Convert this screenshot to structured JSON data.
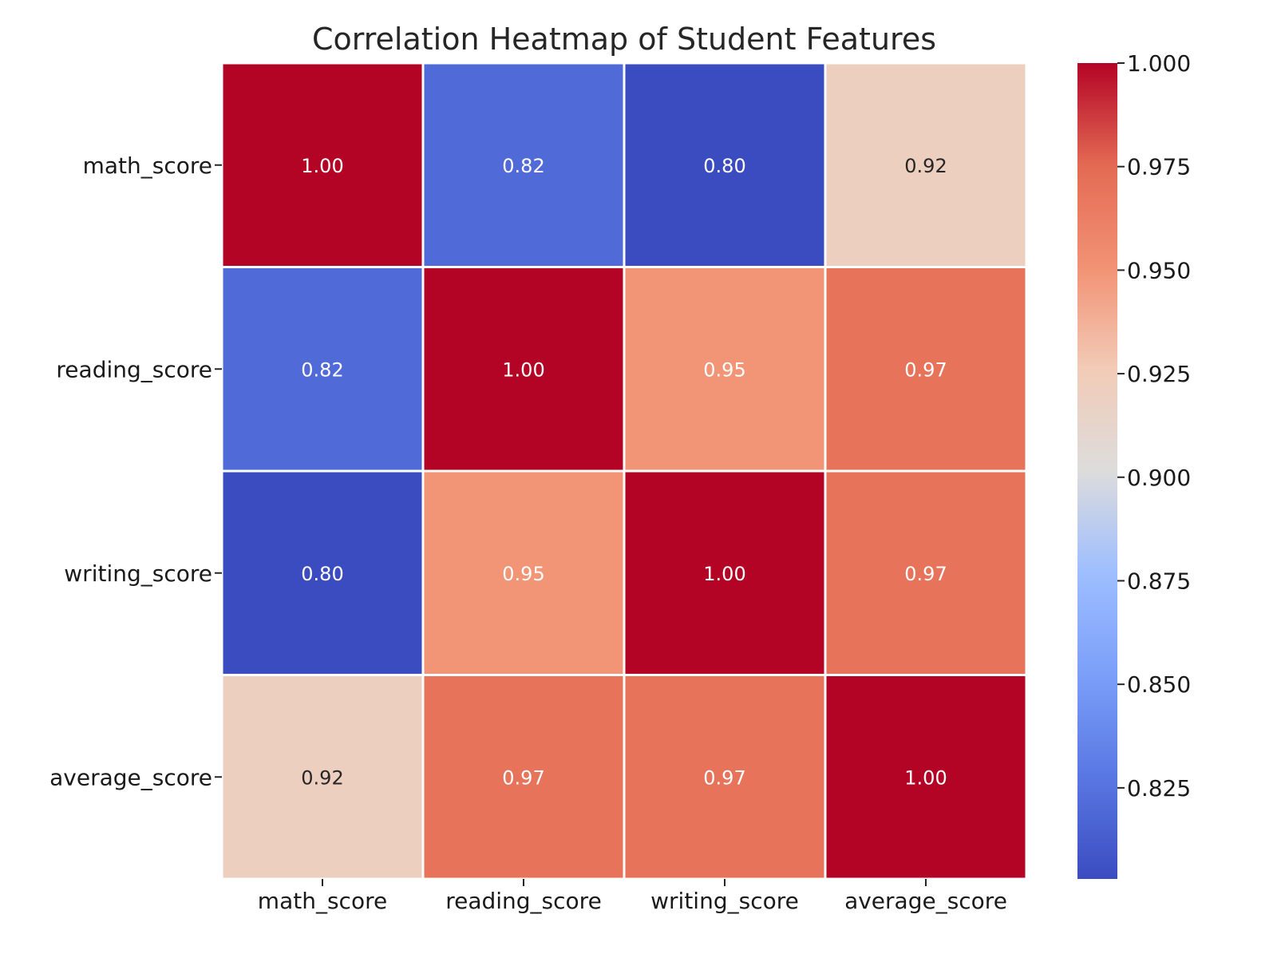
{
  "chart_data": {
    "type": "heatmap",
    "title": "Correlation Heatmap of Student Features",
    "x_categories": [
      "math_score",
      "reading_score",
      "writing_score",
      "average_score"
    ],
    "y_categories": [
      "math_score",
      "reading_score",
      "writing_score",
      "average_score"
    ],
    "values": [
      [
        1.0,
        0.82,
        0.8,
        0.92
      ],
      [
        0.82,
        1.0,
        0.95,
        0.97
      ],
      [
        0.8,
        0.95,
        1.0,
        0.97
      ],
      [
        0.92,
        0.97,
        0.97,
        1.0
      ]
    ],
    "value_labels": [
      [
        "1.00",
        "0.82",
        "0.80",
        "0.92"
      ],
      [
        "0.82",
        "1.00",
        "0.95",
        "0.97"
      ],
      [
        "0.80",
        "0.95",
        "1.00",
        "0.97"
      ],
      [
        "0.92",
        "0.97",
        "0.97",
        "1.00"
      ]
    ],
    "colormap": "coolwarm",
    "color_range": [
      0.803,
      1.0
    ],
    "colorbar_ticks": [
      "0.825",
      "0.850",
      "0.875",
      "0.900",
      "0.925",
      "0.950",
      "0.975",
      "1.000"
    ],
    "colorbar_tick_values": [
      0.825,
      0.85,
      0.875,
      0.9,
      0.925,
      0.95,
      0.975,
      1.0
    ],
    "colormap_stops": [
      {
        "v": 0.0,
        "color": "#3b4cc0"
      },
      {
        "v": 0.125,
        "color": "#5977e3"
      },
      {
        "v": 0.25,
        "color": "#7b9ff9"
      },
      {
        "v": 0.375,
        "color": "#9ebeff"
      },
      {
        "v": 0.5,
        "color": "#dddcdc"
      },
      {
        "v": 0.625,
        "color": "#f2cbb7"
      },
      {
        "v": 0.75,
        "color": "#f29274"
      },
      {
        "v": 0.875,
        "color": "#e36a53"
      },
      {
        "v": 1.0,
        "color": "#b40426"
      }
    ],
    "cell_border_color": "#ffffff"
  }
}
